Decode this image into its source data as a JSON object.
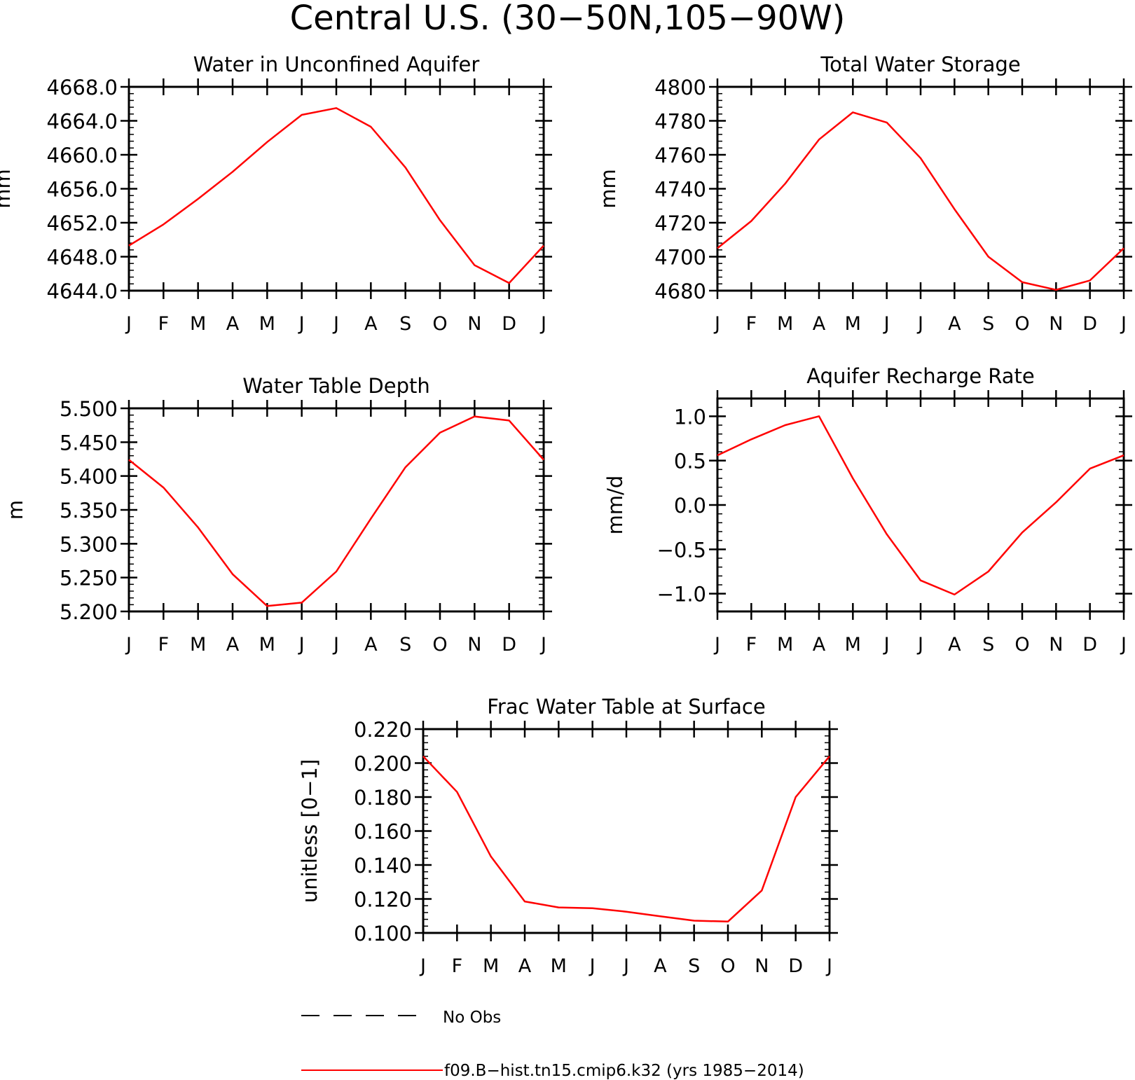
{
  "page_title": "Central U.S. (30−50N,105−90W)",
  "month_labels": [
    "J",
    "F",
    "M",
    "A",
    "M",
    "J",
    "J",
    "A",
    "S",
    "O",
    "N",
    "D",
    "J"
  ],
  "series_color": "#ff0000",
  "legend": {
    "obs_label": "No Obs",
    "model_label": "f09.B−hist.tn15.cmip6.k32 (yrs 1985−2014)"
  },
  "chart_data": [
    {
      "type": "line",
      "title": "Water in Unconfined Aquifer",
      "ylabel": "mm",
      "ylim": [
        4644.0,
        4668.0
      ],
      "yticks": [
        4644.0,
        4648.0,
        4652.0,
        4656.0,
        4660.0,
        4664.0,
        4668.0
      ],
      "ytick_labels": [
        "4644.0",
        "4648.0",
        "4652.0",
        "4656.0",
        "4660.0",
        "4664.0",
        "4668.0"
      ],
      "series": [
        {
          "values": [
            4649.3,
            4651.8,
            4654.8,
            4658.0,
            4661.5,
            4664.7,
            4665.5,
            4663.3,
            4658.5,
            4652.3,
            4647.0,
            4644.9,
            4649.3
          ]
        }
      ]
    },
    {
      "type": "line",
      "title": "Total Water Storage",
      "ylabel": "mm",
      "ylim": [
        4680,
        4800
      ],
      "yticks": [
        4680,
        4700,
        4720,
        4740,
        4760,
        4780,
        4800
      ],
      "ytick_labels": [
        "4680",
        "4700",
        "4720",
        "4740",
        "4760",
        "4780",
        "4800"
      ],
      "series": [
        {
          "values": [
            4705,
            4721,
            4743,
            4769,
            4785,
            4779,
            4758,
            4728,
            4700,
            4685,
            4680.5,
            4686,
            4705
          ]
        }
      ]
    },
    {
      "type": "line",
      "title": "Water Table Depth",
      "ylabel": "m",
      "ylim": [
        5.2,
        5.5
      ],
      "yticks": [
        5.2,
        5.25,
        5.3,
        5.35,
        5.4,
        5.45,
        5.5
      ],
      "ytick_labels": [
        "5.200",
        "5.250",
        "5.300",
        "5.350",
        "5.400",
        "5.450",
        "5.500"
      ],
      "series": [
        {
          "values": [
            5.424,
            5.383,
            5.324,
            5.255,
            5.208,
            5.213,
            5.259,
            5.337,
            5.413,
            5.464,
            5.488,
            5.482,
            5.424
          ]
        }
      ]
    },
    {
      "type": "line",
      "title": "Aquifer Recharge Rate",
      "ylabel": "mm/d",
      "ylim": [
        -1.2,
        1.2
      ],
      "yticks": [
        -1.0,
        -0.5,
        0.0,
        0.5,
        1.0
      ],
      "ytick_labels": [
        "−1.0",
        "−0.5",
        "0.0",
        "0.5",
        "1.0"
      ],
      "series": [
        {
          "values": [
            0.56,
            0.74,
            0.9,
            1.0,
            0.3,
            -0.33,
            -0.85,
            -1.01,
            -0.75,
            -0.31,
            0.03,
            0.41,
            0.56
          ]
        }
      ]
    },
    {
      "type": "line",
      "title": "Frac Water Table at Surface",
      "ylabel": "unitless [0−1]",
      "ylim": [
        0.1,
        0.22
      ],
      "yticks": [
        0.1,
        0.12,
        0.14,
        0.16,
        0.18,
        0.2,
        0.22
      ],
      "ytick_labels": [
        "0.100",
        "0.120",
        "0.140",
        "0.160",
        "0.180",
        "0.200",
        "0.220"
      ],
      "series": [
        {
          "values": [
            0.204,
            0.183,
            0.145,
            0.1185,
            0.115,
            0.1145,
            0.1125,
            0.1098,
            0.1072,
            0.1067,
            0.125,
            0.18,
            0.204
          ]
        }
      ]
    }
  ]
}
